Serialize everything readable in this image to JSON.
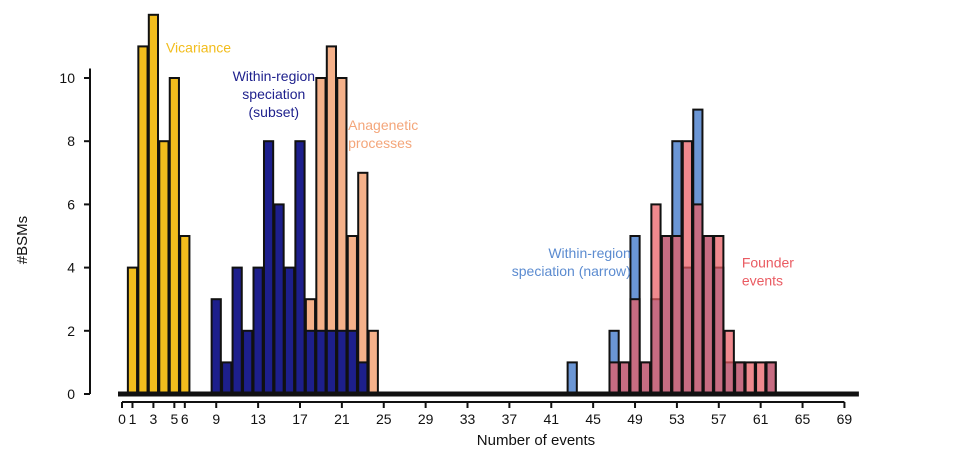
{
  "chart_data": {
    "type": "bar",
    "xlabel": "Number of events",
    "ylabel": "#BSMs",
    "xlim": [
      -0.5,
      70.5
    ],
    "ylim": [
      0,
      12
    ],
    "x_ticks": [
      0,
      1,
      3,
      5,
      6,
      9,
      13,
      17,
      21,
      25,
      29,
      33,
      37,
      41,
      45,
      49,
      53,
      57,
      61,
      65,
      69
    ],
    "x_tick_labels": [
      "0",
      "1",
      "3",
      "5",
      "6",
      "9",
      "13",
      "17",
      "21",
      "25",
      "29",
      "33",
      "37",
      "41",
      "45",
      "49",
      "53",
      "57",
      "61",
      "65",
      "69"
    ],
    "y_ticks": [
      0,
      2,
      4,
      6,
      8,
      10
    ],
    "series": [
      {
        "key": "vicariance",
        "color": "#f2bd1d",
        "opacity": 1,
        "bars": [
          [
            1,
            4
          ],
          [
            2,
            11
          ],
          [
            3,
            12
          ],
          [
            4,
            8
          ],
          [
            5,
            10
          ],
          [
            6,
            5
          ]
        ]
      },
      {
        "key": "anagenetic",
        "color": "#f4a67a",
        "opacity": 0.88,
        "bars": [
          [
            17,
            2
          ],
          [
            18,
            3
          ],
          [
            19,
            10
          ],
          [
            20,
            11
          ],
          [
            21,
            10
          ],
          [
            22,
            5
          ],
          [
            23,
            7
          ],
          [
            24,
            2
          ]
        ]
      },
      {
        "key": "within_subset",
        "color": "#1d1f8c",
        "opacity": 1,
        "bars": [
          [
            9,
            3
          ],
          [
            10,
            1
          ],
          [
            11,
            4
          ],
          [
            12,
            2
          ],
          [
            13,
            4
          ],
          [
            14,
            8
          ],
          [
            15,
            6
          ],
          [
            16,
            4
          ],
          [
            17,
            8
          ],
          [
            18,
            2
          ],
          [
            19,
            2
          ],
          [
            20,
            2
          ],
          [
            21,
            2
          ],
          [
            22,
            2
          ],
          [
            23,
            1
          ]
        ]
      },
      {
        "key": "within_narrow",
        "color": "#5b8bd0",
        "opacity": 0.9,
        "bars": [
          [
            43,
            1
          ],
          [
            47,
            2
          ],
          [
            48,
            1
          ],
          [
            49,
            5
          ],
          [
            50,
            1
          ],
          [
            51,
            3
          ],
          [
            52,
            5
          ],
          [
            53,
            8
          ],
          [
            54,
            4
          ],
          [
            55,
            9
          ],
          [
            56,
            5
          ],
          [
            57,
            4
          ],
          [
            58,
            1
          ],
          [
            59,
            1
          ],
          [
            62,
            1
          ]
        ]
      },
      {
        "key": "founder",
        "color": "#ea5b62",
        "opacity": 0.72,
        "bars": [
          [
            47,
            1
          ],
          [
            48,
            1
          ],
          [
            49,
            3
          ],
          [
            50,
            1
          ],
          [
            51,
            6
          ],
          [
            52,
            5
          ],
          [
            53,
            5
          ],
          [
            54,
            8
          ],
          [
            55,
            6
          ],
          [
            56,
            5
          ],
          [
            57,
            5
          ],
          [
            58,
            2
          ],
          [
            59,
            1
          ],
          [
            60,
            1
          ],
          [
            61,
            1
          ],
          [
            62,
            1
          ]
        ]
      }
    ],
    "annotations": [
      {
        "key": "vicariance",
        "lines": [
          "Vicariance"
        ],
        "color": "#f2bd1d",
        "x": 4.2,
        "y": 10.8,
        "anchor": "start"
      },
      {
        "key": "within_subset",
        "lines": [
          "Within-region",
          "speciation",
          "(subset)"
        ],
        "color": "#1d1f8c",
        "x": 14.5,
        "y": 9.9,
        "anchor": "middle"
      },
      {
        "key": "anagenetic",
        "lines": [
          "Anagenetic",
          "processes"
        ],
        "color": "#f4a67a",
        "x": 21.6,
        "y": 8.35,
        "anchor": "start"
      },
      {
        "key": "within_narrow",
        "lines": [
          "Within-region",
          "speciation (narrow)"
        ],
        "color": "#5b8bd0",
        "x": 48.6,
        "y": 4.3,
        "anchor": "end"
      },
      {
        "key": "founder",
        "lines": [
          "Founder",
          "events"
        ],
        "color": "#ea5b62",
        "x": 59.2,
        "y": 4.0,
        "anchor": "start"
      }
    ]
  }
}
